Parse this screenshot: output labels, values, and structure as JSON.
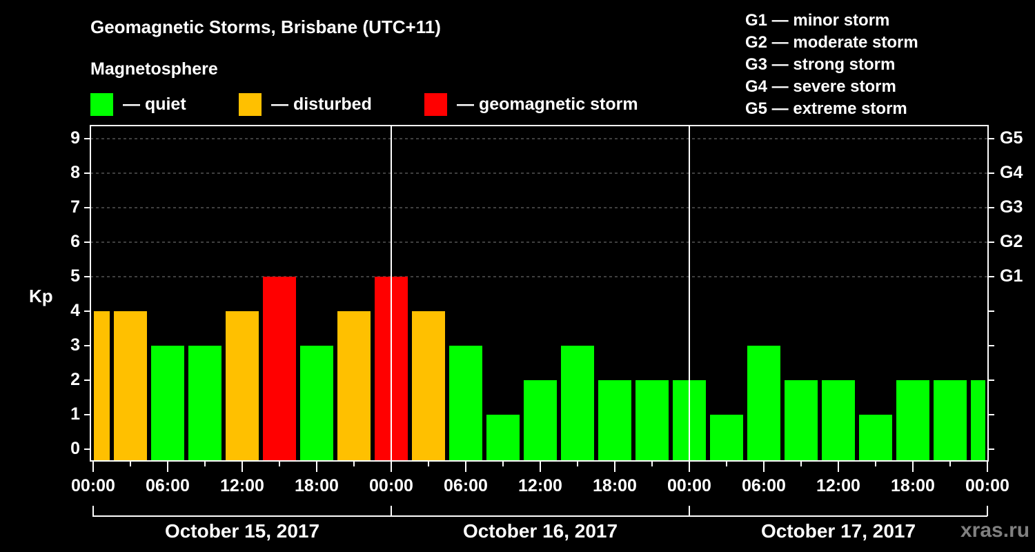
{
  "header": {
    "title": "Geomagnetic Storms, Brisbane (UTC+11)",
    "subtitle": "Magnetosphere"
  },
  "legend": {
    "items": [
      {
        "label": "— quiet",
        "color": "#00ff00"
      },
      {
        "label": "— disturbed",
        "color": "#ffc000"
      },
      {
        "label": "— geomagnetic storm",
        "color": "#ff0000"
      }
    ]
  },
  "g_scale": [
    "G1 — minor storm",
    "G2 — moderate storm",
    "G3 — strong storm",
    "G4 — severe storm",
    "G5 — extreme storm"
  ],
  "axes": {
    "ylabel": "Kp",
    "y_ticks": [
      "0",
      "1",
      "2",
      "3",
      "4",
      "5",
      "6",
      "7",
      "8",
      "9"
    ],
    "g_ticks": [
      "G1",
      "G2",
      "G3",
      "G4",
      "G5"
    ],
    "x_ticks": [
      "00:00",
      "06:00",
      "12:00",
      "18:00",
      "00:00",
      "06:00",
      "12:00",
      "18:00",
      "00:00",
      "06:00",
      "12:00",
      "18:00",
      "00:00"
    ],
    "dates": [
      "October 15, 2017",
      "October 16, 2017",
      "October 17, 2017"
    ]
  },
  "watermark": "xras.ru",
  "colors": {
    "quiet": "#00ff00",
    "disturbed": "#ffc000",
    "storm": "#ff0000",
    "grid": "#808080",
    "axis": "#ffffff"
  },
  "chart_data": {
    "type": "bar",
    "title": "Geomagnetic Storms, Brisbane (UTC+11)",
    "subtitle": "Magnetosphere",
    "xlabel": "",
    "ylabel": "Kp",
    "ylim": [
      -0.33,
      9.7
    ],
    "secondary_y_ticks": {
      "5": "G1",
      "6": "G2",
      "7": "G3",
      "8": "G4",
      "9": "G5"
    },
    "grid": "dashed horizontal at Kp 5-9",
    "bar_interval_hours": 3,
    "bar_offset_hours": -1.5,
    "categories": [
      "Oct 15 00:00",
      "Oct 15 03:00",
      "Oct 15 06:00",
      "Oct 15 09:00",
      "Oct 15 12:00",
      "Oct 15 15:00",
      "Oct 15 18:00",
      "Oct 15 21:00",
      "Oct 16 00:00",
      "Oct 16 03:00",
      "Oct 16 06:00",
      "Oct 16 09:00",
      "Oct 16 12:00",
      "Oct 16 15:00",
      "Oct 16 18:00",
      "Oct 16 21:00",
      "Oct 17 00:00",
      "Oct 17 03:00",
      "Oct 17 06:00",
      "Oct 17 09:00",
      "Oct 17 12:00",
      "Oct 17 15:00",
      "Oct 17 18:00",
      "Oct 17 21:00",
      "Oct 18 00:00"
    ],
    "values": [
      4,
      4,
      3,
      3,
      4,
      5,
      3,
      4,
      5,
      4,
      3,
      1,
      2,
      3,
      2,
      2,
      2,
      1,
      3,
      2,
      2,
      1,
      2,
      2,
      2
    ],
    "status": [
      "disturbed",
      "disturbed",
      "quiet",
      "quiet",
      "disturbed",
      "storm",
      "quiet",
      "disturbed",
      "storm",
      "disturbed",
      "quiet",
      "quiet",
      "quiet",
      "quiet",
      "quiet",
      "quiet",
      "quiet",
      "quiet",
      "quiet",
      "quiet",
      "quiet",
      "quiet",
      "quiet",
      "quiet",
      "quiet"
    ],
    "legend": [
      "quiet",
      "disturbed",
      "geomagnetic storm"
    ],
    "x_tick_labels": [
      "00:00",
      "06:00",
      "12:00",
      "18:00",
      "00:00",
      "06:00",
      "12:00",
      "18:00",
      "00:00",
      "06:00",
      "12:00",
      "18:00",
      "00:00"
    ],
    "date_labels": [
      "October 15, 2017",
      "October 16, 2017",
      "October 17, 2017"
    ]
  }
}
